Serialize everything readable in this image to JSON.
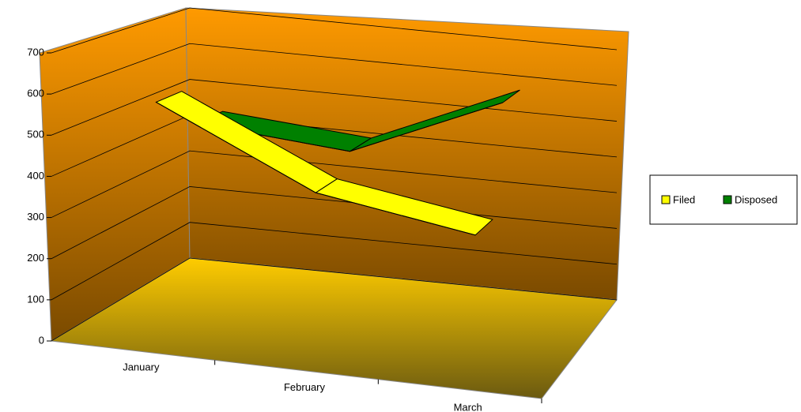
{
  "chart_data": {
    "type": "line3d",
    "categories": [
      "January",
      "February",
      "March"
    ],
    "series": [
      {
        "name": "Filed",
        "color": "#ffff00",
        "values": [
          580,
          400,
          340
        ]
      },
      {
        "name": "Disposed",
        "color": "#008000",
        "values": [
          480,
          450,
          620
        ]
      }
    ],
    "ylim": [
      0,
      700
    ],
    "yticks": [
      0,
      100,
      200,
      300,
      400,
      500,
      600,
      700
    ],
    "grid": true
  }
}
